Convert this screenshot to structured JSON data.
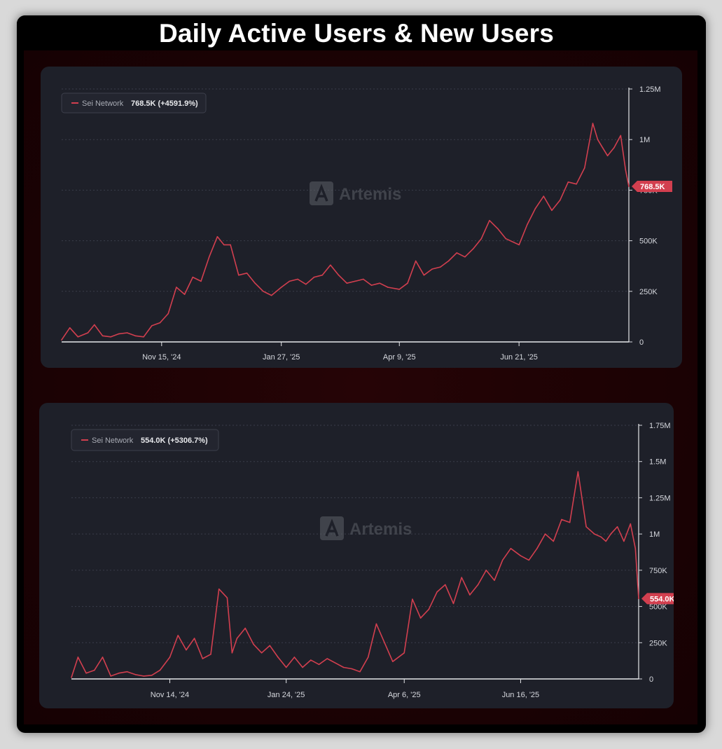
{
  "title": "Daily Active Users & New Users",
  "colors": {
    "series": "#d23f4f",
    "panel_bg": "#1e2029",
    "grid": "#3a3d4a",
    "axis_text": "#d6d8de",
    "watermark": "#5d6068"
  },
  "chart_data": [
    {
      "type": "line",
      "title": "",
      "watermark": "Artemis",
      "watermark_icon": "artemis-logo-icon",
      "legend": {
        "name": "Sei Network",
        "value": "768.5K (+4591.9%)",
        "placement": "top-left"
      },
      "series": [
        {
          "name": "Sei Network",
          "color": "#d23f4f",
          "x": [
            "2024-09-15",
            "2024-09-20",
            "2024-09-25",
            "2024-10-01",
            "2024-10-05",
            "2024-10-10",
            "2024-10-15",
            "2024-10-20",
            "2024-10-25",
            "2024-10-30",
            "2024-11-04",
            "2024-11-09",
            "2024-11-14",
            "2024-11-19",
            "2024-11-24",
            "2024-11-29",
            "2024-12-04",
            "2024-12-09",
            "2024-12-14",
            "2024-12-19",
            "2024-12-23",
            "2024-12-27",
            "2025-01-01",
            "2025-01-06",
            "2025-01-11",
            "2025-01-16",
            "2025-01-21",
            "2025-01-27",
            "2025-02-01",
            "2025-02-06",
            "2025-02-11",
            "2025-02-16",
            "2025-02-21",
            "2025-02-26",
            "2025-03-03",
            "2025-03-08",
            "2025-03-13",
            "2025-03-18",
            "2025-03-23",
            "2025-03-28",
            "2025-04-02",
            "2025-04-09",
            "2025-04-14",
            "2025-04-19",
            "2025-04-24",
            "2025-04-29",
            "2025-05-04",
            "2025-05-09",
            "2025-05-14",
            "2025-05-19",
            "2025-05-24",
            "2025-05-29",
            "2025-06-03",
            "2025-06-08",
            "2025-06-13",
            "2025-06-21",
            "2025-06-26",
            "2025-07-01",
            "2025-07-06",
            "2025-07-11",
            "2025-07-16",
            "2025-07-21",
            "2025-07-26",
            "2025-07-31",
            "2025-08-05",
            "2025-08-08",
            "2025-08-11",
            "2025-08-14",
            "2025-08-18",
            "2025-08-22",
            "2025-08-25",
            "2025-08-27"
          ],
          "values": [
            10000,
            70000,
            25000,
            45000,
            85000,
            30000,
            25000,
            40000,
            45000,
            30000,
            25000,
            80000,
            95000,
            140000,
            270000,
            235000,
            320000,
            300000,
            420000,
            520000,
            480000,
            480000,
            330000,
            340000,
            290000,
            250000,
            230000,
            270000,
            300000,
            310000,
            285000,
            320000,
            330000,
            380000,
            330000,
            290000,
            300000,
            310000,
            280000,
            290000,
            270000,
            260000,
            290000,
            400000,
            330000,
            360000,
            370000,
            400000,
            440000,
            420000,
            460000,
            510000,
            600000,
            560000,
            510000,
            480000,
            580000,
            660000,
            720000,
            650000,
            700000,
            790000,
            780000,
            860000,
            1080000,
            1000000,
            960000,
            920000,
            960000,
            1020000,
            850000,
            768500
          ]
        }
      ],
      "x_axis": {
        "ticks": [
          "Nov 15, '24",
          "Jan 27, '25",
          "Apr 9, '25",
          "Jun 21, '25"
        ],
        "tick_dates": [
          "2024-11-15",
          "2025-01-27",
          "2025-04-09",
          "2025-06-21"
        ]
      },
      "y_axis": {
        "ticks": [
          "1.25M",
          "1M",
          "750K",
          "500K",
          "250K",
          "0"
        ],
        "tick_values": [
          1250000,
          1000000,
          750000,
          500000,
          250000,
          0
        ],
        "range": [
          0,
          1250000
        ],
        "side": "right"
      },
      "last_value_label": "768.5K",
      "grid": true
    },
    {
      "type": "line",
      "title": "",
      "watermark": "Artemis",
      "watermark_icon": "artemis-logo-icon",
      "legend": {
        "name": "Sei Network",
        "value": "554.0K (+5306.7%)",
        "placement": "top-left"
      },
      "series": [
        {
          "name": "Sei Network",
          "color": "#d23f4f",
          "x": [
            "2024-09-15",
            "2024-09-19",
            "2024-09-24",
            "2024-09-29",
            "2024-10-04",
            "2024-10-09",
            "2024-10-14",
            "2024-10-19",
            "2024-10-24",
            "2024-10-29",
            "2024-11-03",
            "2024-11-08",
            "2024-11-14",
            "2024-11-19",
            "2024-11-24",
            "2024-11-29",
            "2024-12-04",
            "2024-12-09",
            "2024-12-14",
            "2024-12-19",
            "2024-12-22",
            "2024-12-25",
            "2024-12-30",
            "2025-01-04",
            "2025-01-09",
            "2025-01-14",
            "2025-01-19",
            "2025-01-24",
            "2025-01-29",
            "2025-02-03",
            "2025-02-08",
            "2025-02-13",
            "2025-02-18",
            "2025-02-23",
            "2025-02-28",
            "2025-03-05",
            "2025-03-10",
            "2025-03-15",
            "2025-03-20",
            "2025-03-25",
            "2025-03-30",
            "2025-04-06",
            "2025-04-11",
            "2025-04-16",
            "2025-04-21",
            "2025-04-26",
            "2025-05-01",
            "2025-05-06",
            "2025-05-11",
            "2025-05-16",
            "2025-05-21",
            "2025-05-26",
            "2025-05-31",
            "2025-06-05",
            "2025-06-10",
            "2025-06-16",
            "2025-06-21",
            "2025-06-26",
            "2025-07-01",
            "2025-07-06",
            "2025-07-11",
            "2025-07-16",
            "2025-07-21",
            "2025-07-26",
            "2025-07-31",
            "2025-08-04",
            "2025-08-07",
            "2025-08-10",
            "2025-08-14",
            "2025-08-18",
            "2025-08-22",
            "2025-08-25",
            "2025-08-27"
          ],
          "values": [
            10000,
            150000,
            40000,
            60000,
            150000,
            20000,
            40000,
            50000,
            30000,
            20000,
            25000,
            60000,
            150000,
            300000,
            200000,
            280000,
            140000,
            170000,
            620000,
            560000,
            180000,
            280000,
            350000,
            240000,
            180000,
            230000,
            150000,
            80000,
            150000,
            80000,
            130000,
            100000,
            140000,
            110000,
            80000,
            70000,
            50000,
            150000,
            380000,
            250000,
            120000,
            180000,
            550000,
            420000,
            480000,
            600000,
            650000,
            520000,
            700000,
            580000,
            650000,
            750000,
            680000,
            820000,
            900000,
            850000,
            820000,
            900000,
            1000000,
            950000,
            1100000,
            1080000,
            1430000,
            1050000,
            1000000,
            980000,
            950000,
            1000000,
            1050000,
            950000,
            1070000,
            900000,
            554000
          ]
        }
      ],
      "x_axis": {
        "ticks": [
          "Nov 14, '24",
          "Jan 24, '25",
          "Apr 6, '25",
          "Jun 16, '25"
        ],
        "tick_dates": [
          "2024-11-14",
          "2025-01-24",
          "2025-04-06",
          "2025-06-16"
        ]
      },
      "y_axis": {
        "ticks": [
          "1.75M",
          "1.5M",
          "1.25M",
          "1M",
          "750K",
          "500K",
          "250K",
          "0"
        ],
        "tick_values": [
          1750000,
          1500000,
          1250000,
          1000000,
          750000,
          500000,
          250000,
          0
        ],
        "range": [
          0,
          1750000
        ],
        "side": "right"
      },
      "last_value_label": "554.0K",
      "grid": true
    }
  ]
}
